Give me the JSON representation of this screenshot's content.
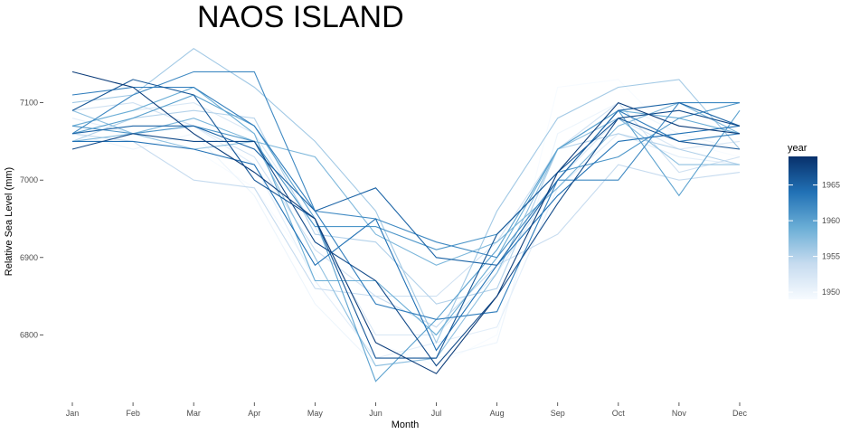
{
  "chart_data": {
    "type": "line",
    "title": "NAOS ISLAND",
    "xlabel": "Month",
    "ylabel": "Relative Sea Level (mm)",
    "categories": [
      "Jan",
      "Feb",
      "Mar",
      "Apr",
      "May",
      "Jun",
      "Jul",
      "Aug",
      "Sep",
      "Oct",
      "Nov",
      "Dec"
    ],
    "yticks": [
      6800,
      6900,
      7000,
      7100
    ],
    "ylim": [
      6728,
      7186
    ],
    "grid": false,
    "legend": {
      "title": "year",
      "placement": "right",
      "type": "colorbar",
      "ticks": [
        1950,
        1955,
        1960,
        1965
      ],
      "range": [
        1949,
        1969
      ],
      "color_low": "#f7fbff",
      "color_high": "#08306b"
    },
    "series": [
      {
        "year": 1949,
        "values": [
          7050,
          7060,
          7040,
          6990,
          6880,
          6790,
          6760,
          6800,
          7120,
          7130,
          7050,
          7030
        ]
      },
      {
        "year": 1950,
        "values": [
          7060,
          7040,
          7060,
          6980,
          6840,
          6760,
          6770,
          6790,
          7060,
          7100,
          7060,
          7040
        ]
      },
      {
        "year": 1951,
        "values": [
          7080,
          7060,
          7070,
          7020,
          6870,
          6770,
          6790,
          6810,
          6990,
          7060,
          7030,
          7020
        ]
      },
      {
        "year": 1952,
        "values": [
          7070,
          7090,
          7100,
          7060,
          6940,
          6800,
          6800,
          6880,
          7000,
          7080,
          7040,
          7050
        ]
      },
      {
        "year": 1953,
        "values": [
          7090,
          7100,
          7070,
          7030,
          6910,
          6850,
          6850,
          6920,
          7040,
          7100,
          7010,
          7030
        ]
      },
      {
        "year": 1954,
        "values": [
          7060,
          7050,
          7000,
          6990,
          6860,
          6850,
          6810,
          6890,
          6930,
          7020,
          7000,
          7010
        ]
      },
      {
        "year": 1955,
        "values": [
          7050,
          7080,
          7090,
          7080,
          6930,
          6920,
          6840,
          6860,
          7040,
          7060,
          7040,
          7020
        ]
      },
      {
        "year": 1956,
        "values": [
          7100,
          7110,
          7170,
          7120,
          7050,
          6960,
          6790,
          6960,
          7080,
          7120,
          7130,
          7040
        ]
      },
      {
        "year": 1957,
        "values": [
          7090,
          7060,
          7040,
          7050,
          6900,
          6760,
          6770,
          6880,
          7040,
          7080,
          7020,
          7020
        ]
      },
      {
        "year": 1958,
        "values": [
          7050,
          7060,
          7080,
          7050,
          7030,
          6930,
          6890,
          6920,
          6990,
          7070,
          7100,
          7060
        ]
      },
      {
        "year": 1959,
        "values": [
          7070,
          7090,
          7120,
          7060,
          6870,
          6870,
          6800,
          6900,
          7040,
          7090,
          7080,
          7060
        ]
      },
      {
        "year": 1960,
        "values": [
          7060,
          7080,
          7110,
          7070,
          6950,
          6740,
          6820,
          6910,
          7040,
          7090,
          6980,
          7090
        ]
      },
      {
        "year": 1961,
        "values": [
          7070,
          7060,
          7070,
          7050,
          6940,
          6940,
          6910,
          6930,
          7010,
          7030,
          7080,
          7100
        ]
      },
      {
        "year": 1962,
        "values": [
          7060,
          7110,
          7140,
          7140,
          6960,
          6950,
          6920,
          6900,
          7000,
          7000,
          7100,
          7100
        ]
      },
      {
        "year": 1963,
        "values": [
          7110,
          7120,
          7120,
          7070,
          6960,
          6840,
          6820,
          6830,
          7000,
          7090,
          7050,
          7060
        ]
      },
      {
        "year": 1964,
        "values": [
          7050,
          7050,
          7040,
          7020,
          6890,
          6950,
          6780,
          6890,
          6980,
          7050,
          7060,
          7070
        ]
      },
      {
        "year": 1965,
        "values": [
          7060,
          7070,
          7070,
          7040,
          6960,
          6990,
          6900,
          6890,
          7000,
          7090,
          7100,
          7070
        ]
      },
      {
        "year": 1966,
        "values": [
          7090,
          7130,
          7110,
          7000,
          6950,
          6770,
          6770,
          6930,
          7010,
          7080,
          7050,
          7040
        ]
      },
      {
        "year": 1967,
        "values": [
          7040,
          7060,
          7050,
          7050,
          6920,
          6870,
          6760,
          6850,
          6970,
          7080,
          7090,
          7070
        ]
      },
      {
        "year": 1968,
        "values": [
          7140,
          7120,
          7060,
          7010,
          6950,
          6790,
          6750,
          6850,
          7010,
          7100,
          7070,
          7060
        ]
      }
    ]
  }
}
